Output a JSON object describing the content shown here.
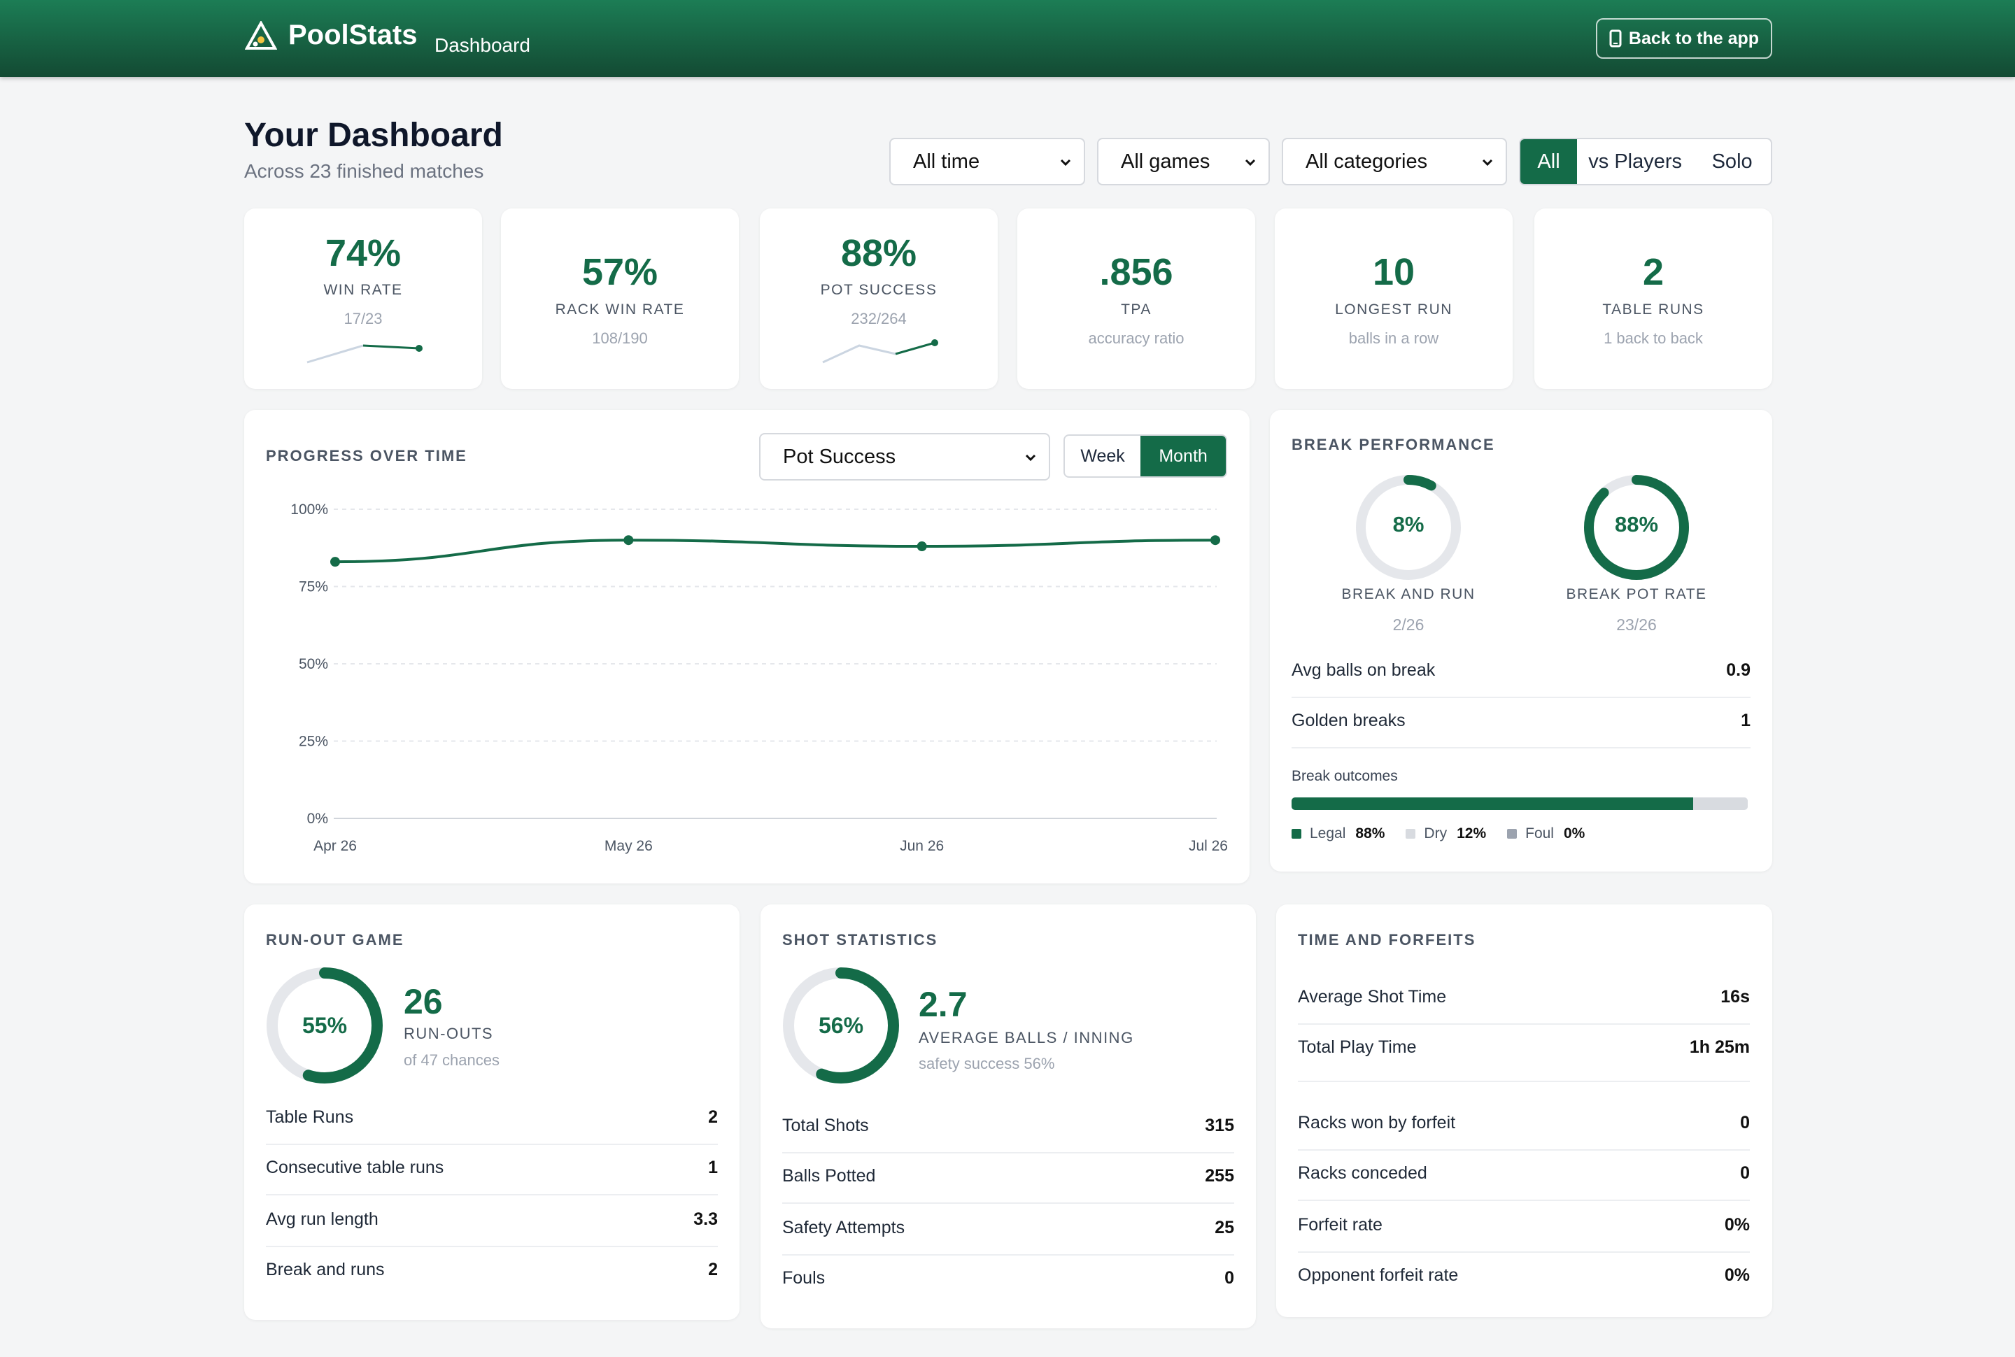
{
  "header": {
    "brand": "PoolStats",
    "subtitle": "Dashboard",
    "back_button": "Back to the app",
    "logo_icon": "triangle-rack-icon"
  },
  "page": {
    "title": "Your Dashboard",
    "subtitle": "Across 23 finished matches"
  },
  "filters": {
    "period": "All time",
    "games": "All games",
    "categories": "All categories",
    "opponent_toggle": [
      "All",
      "vs Players",
      "Solo"
    ],
    "opponent_selected": "All"
  },
  "kpis": [
    {
      "value": "74%",
      "label": "WIN RATE",
      "sub": "17/23"
    },
    {
      "value": "57%",
      "label": "RACK WIN RATE",
      "sub": "108/190"
    },
    {
      "value": "88%",
      "label": "POT SUCCESS",
      "sub": "232/264"
    },
    {
      "value": ".856",
      "label": "TPA",
      "sub": "accuracy ratio"
    },
    {
      "value": "10",
      "label": "LONGEST RUN",
      "sub": "balls in a row"
    },
    {
      "value": "2",
      "label": "TABLE RUNS",
      "sub": "1 back to back"
    }
  ],
  "progress": {
    "title": "PROGRESS OVER TIME",
    "metric": "Pot Success",
    "granularity": [
      "Week",
      "Month"
    ],
    "granularity_selected": "Month"
  },
  "chart_data": {
    "type": "line",
    "title": "",
    "x": [
      "Apr 26",
      "May 26",
      "Jun 26",
      "Jul 26"
    ],
    "series": [
      {
        "values": [
          83,
          90,
          88,
          90
        ]
      }
    ],
    "ylim": [
      0,
      100
    ],
    "yticks": [
      "100%",
      "75%",
      "50%",
      "25%",
      "0%"
    ],
    "grid": true,
    "color": "#146b48"
  },
  "break": {
    "title": "BREAK PERFORMANCE",
    "ring1": {
      "value": "8%",
      "label": "BREAK AND RUN",
      "sub": "2/26",
      "fraction": 0.08
    },
    "ring2": {
      "value": "88%",
      "label": "BREAK POT RATE",
      "sub": "23/26",
      "fraction": 0.88
    },
    "rows": [
      {
        "k": "Avg balls on break",
        "v": "0.9"
      },
      {
        "k": "Golden breaks",
        "v": "1"
      }
    ],
    "outcomes_title": "Break outcomes",
    "outcomes": [
      {
        "label": "Legal",
        "value": "88%",
        "fraction": 0.88,
        "color": "#146b48"
      },
      {
        "label": "Dry",
        "value": "12%",
        "fraction": 0.12,
        "color": "#d8dbe0"
      },
      {
        "label": "Foul",
        "value": "0%",
        "fraction": 0.0,
        "color": "#9ca3af"
      }
    ]
  },
  "runout": {
    "title": "RUN-OUT GAME",
    "ring_value": "55%",
    "fraction": 0.55,
    "big": "26",
    "big_label": "RUN-OUTS",
    "big_sub": "of 47 chances",
    "rows": [
      {
        "k": "Table Runs",
        "v": "2"
      },
      {
        "k": "Consecutive table runs",
        "v": "1"
      },
      {
        "k": "Avg run length",
        "v": "3.3"
      },
      {
        "k": "Break and runs",
        "v": "2"
      }
    ]
  },
  "shots": {
    "title": "SHOT STATISTICS",
    "ring_value": "56%",
    "fraction": 0.56,
    "big": "2.7",
    "big_label": "AVERAGE BALLS / INNING",
    "big_sub": "safety success 56%",
    "rows": [
      {
        "k": "Total Shots",
        "v": "315"
      },
      {
        "k": "Balls Potted",
        "v": "255"
      },
      {
        "k": "Safety Attempts",
        "v": "25"
      },
      {
        "k": "Fouls",
        "v": "0"
      }
    ]
  },
  "time": {
    "title": "TIME AND FORFEITS",
    "rows_a": [
      {
        "k": "Average Shot Time",
        "v": "16s"
      },
      {
        "k": "Total Play Time",
        "v": "1h 25m"
      }
    ],
    "rows_b": [
      {
        "k": "Racks won by forfeit",
        "v": "0"
      },
      {
        "k": "Racks conceded",
        "v": "0"
      },
      {
        "k": "Forfeit rate",
        "v": "0%"
      },
      {
        "k": "Opponent forfeit rate",
        "v": "0%"
      }
    ]
  }
}
